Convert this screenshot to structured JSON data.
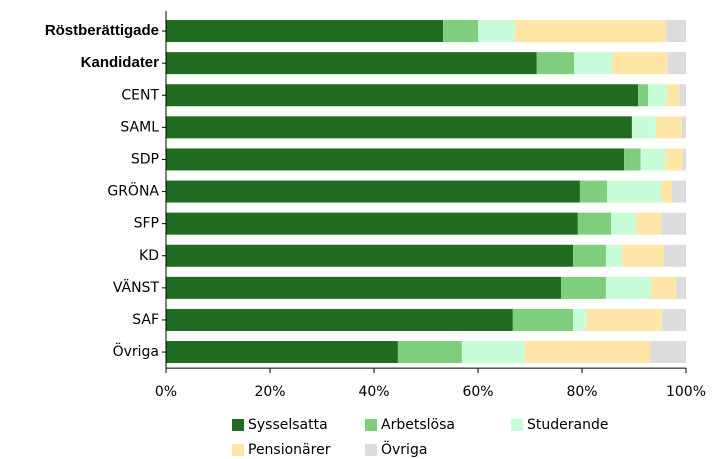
{
  "chart_data": {
    "type": "stacked_barh",
    "categories": [
      "Röstberättigade",
      "Kandidater",
      "CENT",
      "SAML",
      "SDP",
      "GRÖNA",
      "SFP",
      "KD",
      "VÄNST",
      "SAF",
      "Övriga"
    ],
    "series": [
      {
        "name": "Sysselsatta",
        "color": "#1f6b1f",
        "values": [
          53.3,
          71.3,
          90.8,
          89.6,
          88.1,
          79.6,
          79.2,
          78.3,
          76.0,
          66.7,
          44.6
        ]
      },
      {
        "name": "Arbetslösa",
        "color": "#7dcf7d",
        "values": [
          6.7,
          7.2,
          1.9,
          0,
          3.2,
          5.2,
          6.4,
          6.3,
          8.6,
          11.6,
          12.3
        ]
      },
      {
        "name": "Studerande",
        "color": "#c8fcd8",
        "values": [
          7.1,
          7.3,
          3.6,
          4.6,
          4.7,
          10.4,
          4.8,
          3.1,
          8.7,
          2.5,
          12.1
        ]
      },
      {
        "name": "Pensionärer",
        "color": "#fde6a6",
        "values": [
          29.1,
          10.7,
          2.4,
          5.0,
          3.4,
          2.1,
          4.8,
          8.1,
          4.8,
          14.6,
          24.1
        ]
      },
      {
        "name": "Övriga",
        "color": "#dcdcdc",
        "values": [
          3.8,
          3.5,
          1.3,
          0.8,
          0.6,
          2.7,
          4.8,
          4.2,
          1.9,
          4.6,
          6.9
        ]
      }
    ],
    "xlim": [
      0,
      100
    ],
    "xticks": [
      {
        "value": 0,
        "label": "0%"
      },
      {
        "value": 20,
        "label": "20%"
      },
      {
        "value": 40,
        "label": "40%"
      },
      {
        "value": 60,
        "label": "60%"
      },
      {
        "value": 80,
        "label": "80%"
      },
      {
        "value": 100,
        "label": "100%"
      }
    ],
    "legend": "bottom"
  }
}
